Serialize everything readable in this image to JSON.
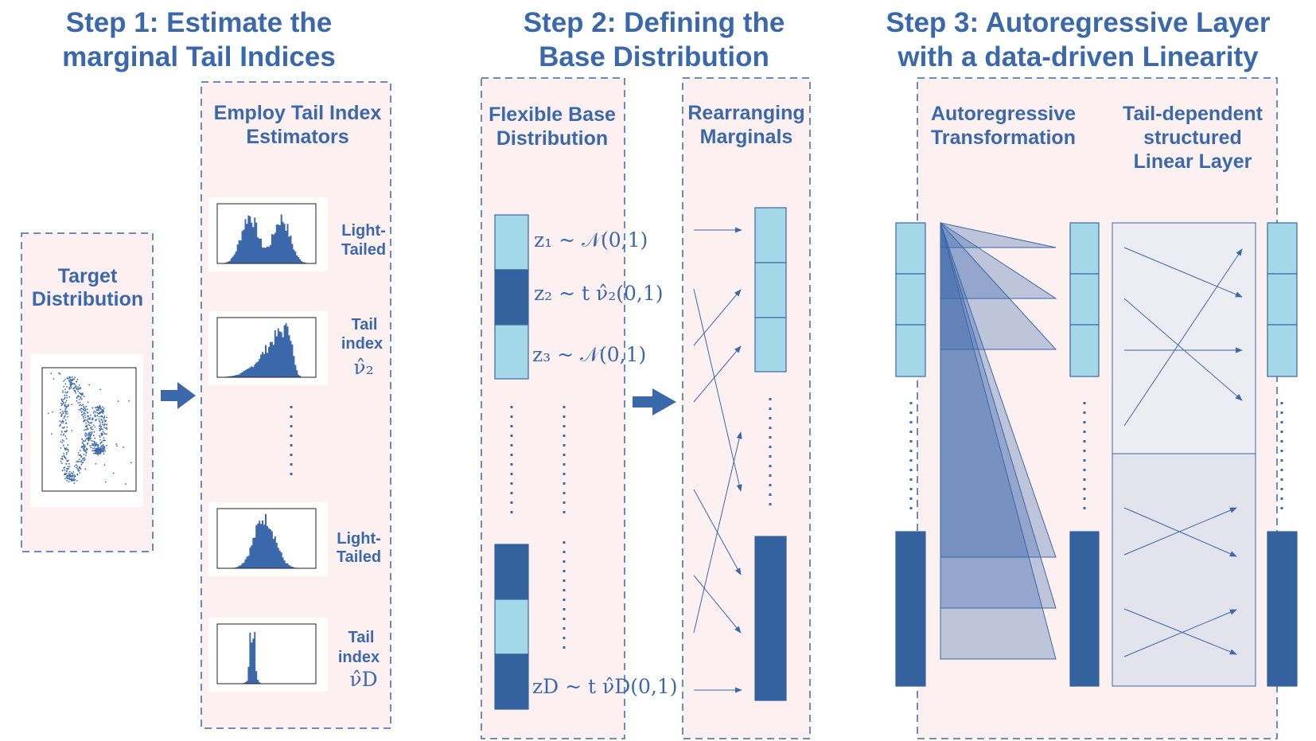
{
  "steps": [
    {
      "line1": "Step 1: Estimate the",
      "line2": "marginal Tail Indices"
    },
    {
      "line1": "Step 2: Defining the",
      "line2": "Base Distribution"
    },
    {
      "line1": "Step 3: Autoregressive Layer",
      "line2": "with a data-driven Linearity"
    }
  ],
  "step1": {
    "target": {
      "line1": "Target",
      "line2": "Distribution"
    },
    "estimators": {
      "line1": "Employ Tail Index",
      "line2": "Estimators"
    },
    "hist_labels": [
      {
        "line1": "Light-",
        "line2": "Tailed",
        "line3": ""
      },
      {
        "line1": "Tail",
        "line2": "index",
        "line3": "ν̂₂"
      },
      {
        "line1": "Light-",
        "line2": "Tailed",
        "line3": ""
      },
      {
        "line1": "Tail",
        "line2": "index",
        "line3": "ν̂D"
      }
    ]
  },
  "step2": {
    "flexible": {
      "line1": "Flexible Base",
      "line2": "Distribution"
    },
    "rearranging": {
      "line1": "Rearranging",
      "line2": "Marginals"
    },
    "formulas": [
      "z₁ ~ 𝒩(0,1)",
      "z₂ ~ t ν̂₂(0,1)",
      "z₃ ~ 𝒩(0,1)",
      "zD ~ t ν̂D(0,1)"
    ]
  },
  "step3": {
    "autoregressive": {
      "line1": "Autoregressive",
      "line2": "Transformation"
    },
    "linear": {
      "line1": "Tail-dependent",
      "line2": "structured",
      "line3": "Linear Layer"
    }
  },
  "colors": {
    "accent": "#3a68ab",
    "dark": "#34629e",
    "light": "#a4d8e8",
    "panel": "#fdf0f0"
  }
}
